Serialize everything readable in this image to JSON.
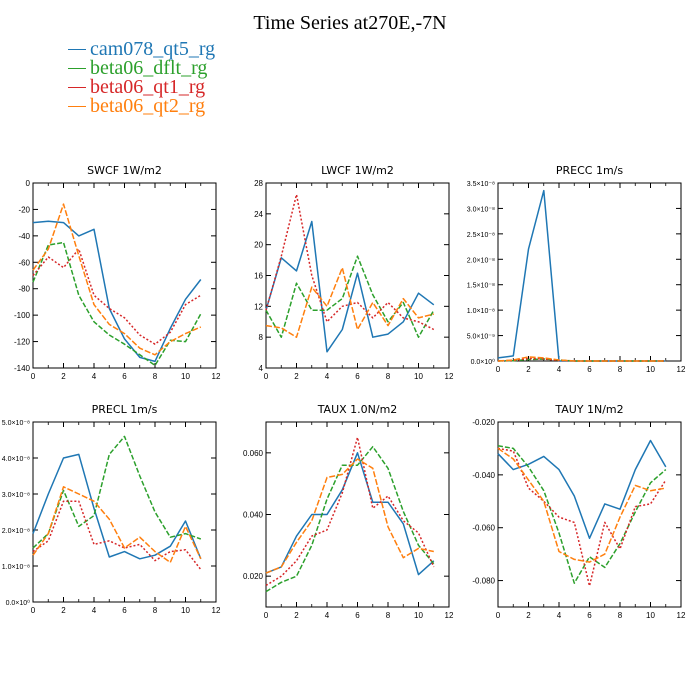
{
  "title": "Time Series at270E,-7N",
  "legend": [
    {
      "name": "cam078_qt5_rg",
      "color": "#1f77b4"
    },
    {
      "name": "beta06_dflt_rg",
      "color": "#2ca02c"
    },
    {
      "name": "beta06_qt1_rg",
      "color": "#d62728"
    },
    {
      "name": "beta06_qt2_rg",
      "color": "#ff7f0e"
    }
  ],
  "chart_data": [
    {
      "type": "line",
      "title": "SWCF 1W/m2",
      "x": [
        0,
        1,
        2,
        3,
        4,
        5,
        6,
        7,
        8,
        9,
        10,
        11
      ],
      "xlim": [
        0,
        12
      ],
      "xticks": [
        0,
        2,
        4,
        6,
        8,
        10,
        12
      ],
      "xtick_labels": [
        "0",
        "2",
        "4",
        "6",
        "8",
        "10",
        "12"
      ],
      "ylim": [
        -140,
        0
      ],
      "yticks": [
        -140,
        -120,
        -100,
        -80,
        -60,
        -40,
        -20,
        0
      ],
      "ytick_labels": [
        "-140",
        "-120",
        "-100",
        "-80",
        "-60",
        "-40",
        "-20",
        "0"
      ],
      "series": [
        {
          "name": "cam078_qt5_rg",
          "values": [
            -30,
            -29,
            -30,
            -40,
            -35,
            -95,
            -118,
            -132,
            -135,
            -110,
            -88,
            -73
          ]
        },
        {
          "name": "beta06_dflt_rg",
          "values": [
            -75,
            -47,
            -45,
            -85,
            -105,
            -115,
            -122,
            -130,
            -138,
            -119,
            -120,
            -99
          ]
        },
        {
          "name": "beta06_qt1_rg",
          "values": [
            -70,
            -56,
            -64,
            -50,
            -85,
            -95,
            -102,
            -115,
            -122,
            -113,
            -92,
            -85
          ]
        },
        {
          "name": "beta06_qt2_rg",
          "values": [
            -66,
            -50,
            -16,
            -55,
            -92,
            -107,
            -114,
            -125,
            -130,
            -120,
            -114,
            -109
          ]
        }
      ]
    },
    {
      "type": "line",
      "title": "LWCF 1W/m2",
      "x": [
        0,
        1,
        2,
        3,
        4,
        5,
        6,
        7,
        8,
        9,
        10,
        11
      ],
      "xlim": [
        0,
        12
      ],
      "xticks": [
        0,
        2,
        4,
        6,
        8,
        10,
        12
      ],
      "xtick_labels": [
        "0",
        "2",
        "4",
        "6",
        "8",
        "10",
        "12"
      ],
      "ylim": [
        4,
        28
      ],
      "yticks": [
        4,
        8,
        12,
        16,
        20,
        24,
        28
      ],
      "ytick_labels": [
        "4",
        "8",
        "12",
        "16",
        "20",
        "24",
        "28"
      ],
      "series": [
        {
          "name": "cam078_qt5_rg",
          "values": [
            11.5,
            18.3,
            16.6,
            23.0,
            6.1,
            9.0,
            16.3,
            8.0,
            8.4,
            10.0,
            13.7,
            12.2
          ]
        },
        {
          "name": "beta06_dflt_rg",
          "values": [
            11.5,
            8.0,
            15.0,
            11.5,
            11.5,
            13.0,
            18.5,
            13.5,
            10.0,
            12.5,
            8.0,
            11.5
          ]
        },
        {
          "name": "beta06_qt1_rg",
          "values": [
            11.5,
            18.5,
            26.5,
            16.0,
            10.0,
            12.0,
            12.5,
            10.5,
            12.5,
            10.5,
            10.0,
            9.0
          ]
        },
        {
          "name": "beta06_qt2_rg",
          "values": [
            9.5,
            9.2,
            8.0,
            14.5,
            12.0,
            17.0,
            9.0,
            12.5,
            9.5,
            13.0,
            10.5,
            11.0
          ]
        }
      ]
    },
    {
      "type": "line",
      "title": "PRECC 1m/s",
      "x": [
        0,
        1,
        2,
        3,
        4,
        5,
        6,
        7,
        8,
        9,
        10,
        11
      ],
      "xlim": [
        0,
        12
      ],
      "xticks": [
        0,
        2,
        4,
        6,
        8,
        10,
        12
      ],
      "xtick_labels": [
        "0",
        "2",
        "4",
        "6",
        "8",
        "10",
        "12"
      ],
      "ylim": [
        0,
        3.5e-08
      ],
      "yticks": [
        0,
        5e-09,
        1e-08,
        1.5e-08,
        2e-08,
        2.5e-08,
        3e-08,
        3.5e-08
      ],
      "ytick_labels": [
        "0.0×10⁰",
        "5.0×10⁻⁹",
        "1.0×10⁻⁸",
        "1.5×10⁻⁸",
        "2.0×10⁻⁸",
        "2.5×10⁻⁸",
        "3.0×10⁻⁸",
        "3.5×10⁻⁸"
      ],
      "series": [
        {
          "name": "cam078_qt5_rg",
          "values": [
            6e-10,
            1e-09,
            2.2e-08,
            3.35e-08,
            0,
            0,
            0,
            0,
            0,
            0,
            0,
            0
          ]
        },
        {
          "name": "beta06_dflt_rg",
          "values": [
            0,
            5e-11,
            3e-10,
            4e-10,
            2e-10,
            0,
            0,
            0,
            0,
            0,
            0,
            0
          ]
        },
        {
          "name": "beta06_qt1_rg",
          "values": [
            0,
            1e-10,
            5e-10,
            4e-10,
            1e-10,
            0,
            0,
            0,
            0,
            0,
            0,
            0
          ]
        },
        {
          "name": "beta06_qt2_rg",
          "values": [
            0,
            2e-10,
            8e-10,
            6e-10,
            2e-10,
            0,
            0,
            0,
            0,
            0,
            0,
            0
          ]
        }
      ]
    },
    {
      "type": "line",
      "title": "PRECL 1m/s",
      "x": [
        0,
        1,
        2,
        3,
        4,
        5,
        6,
        7,
        8,
        9,
        10,
        11
      ],
      "xlim": [
        0,
        12
      ],
      "xticks": [
        0,
        2,
        4,
        6,
        8,
        10,
        12
      ],
      "xtick_labels": [
        "0",
        "2",
        "4",
        "6",
        "8",
        "10",
        "12"
      ],
      "ylim": [
        0,
        5e-08
      ],
      "yticks": [
        0,
        1e-08,
        2e-08,
        3e-08,
        4e-08,
        5e-08
      ],
      "ytick_labels": [
        "0.0×10⁰",
        "1.0×10⁻⁸",
        "2.0×10⁻⁸",
        "3.0×10⁻⁸",
        "4.0×10⁻⁸",
        "5.0×10⁻⁸"
      ],
      "series": [
        {
          "name": "cam078_qt5_rg",
          "values": [
            1.9e-08,
            3e-08,
            4e-08,
            4.1e-08,
            2.6e-08,
            1.25e-08,
            1.4e-08,
            1.2e-08,
            1.3e-08,
            1.55e-08,
            2.25e-08,
            1.2e-08
          ]
        },
        {
          "name": "beta06_dflt_rg",
          "values": [
            1.5e-08,
            1.9e-08,
            3.1e-08,
            2.1e-08,
            2.4e-08,
            4.1e-08,
            4.6e-08,
            3.5e-08,
            2.5e-08,
            1.8e-08,
            1.9e-08,
            1.75e-08
          ]
        },
        {
          "name": "beta06_qt1_rg",
          "values": [
            1.4e-08,
            1.7e-08,
            2.8e-08,
            2.8e-08,
            1.6e-08,
            1.7e-08,
            1.5e-08,
            1.6e-08,
            1.15e-08,
            1.4e-08,
            1.45e-08,
            9e-09
          ]
        },
        {
          "name": "beta06_qt2_rg",
          "values": [
            1.3e-08,
            1.9e-08,
            3.2e-08,
            3e-08,
            2.8e-08,
            2.3e-08,
            1.5e-08,
            1.8e-08,
            1.4e-08,
            1.1e-08,
            2.1e-08,
            1.2e-08
          ]
        }
      ]
    },
    {
      "type": "line",
      "title": "TAUX 1.0N/m2",
      "x": [
        0,
        1,
        2,
        3,
        4,
        5,
        6,
        7,
        8,
        9,
        10,
        11
      ],
      "xlim": [
        0,
        12
      ],
      "xticks": [
        0,
        2,
        4,
        6,
        8,
        10,
        12
      ],
      "xtick_labels": [
        "0",
        "2",
        "4",
        "6",
        "8",
        "10",
        "12"
      ],
      "ylim": [
        0.01,
        0.07
      ],
      "yticks": [
        0.02,
        0.04,
        0.06
      ],
      "ytick_labels": [
        "0.020",
        "0.040",
        "0.060"
      ],
      "series": [
        {
          "name": "cam078_qt5_rg",
          "values": [
            0.021,
            0.023,
            0.033,
            0.04,
            0.04,
            0.048,
            0.06,
            0.044,
            0.044,
            0.037,
            0.0205,
            0.025
          ]
        },
        {
          "name": "beta06_dflt_rg",
          "values": [
            0.015,
            0.018,
            0.02,
            0.03,
            0.045,
            0.056,
            0.056,
            0.062,
            0.055,
            0.041,
            0.03,
            0.024
          ]
        },
        {
          "name": "beta06_qt1_rg",
          "values": [
            0.017,
            0.02,
            0.025,
            0.033,
            0.035,
            0.047,
            0.065,
            0.042,
            0.046,
            0.038,
            0.034,
            0.023
          ]
        },
        {
          "name": "beta06_qt2_rg",
          "values": [
            0.021,
            0.023,
            0.031,
            0.038,
            0.052,
            0.053,
            0.058,
            0.055,
            0.036,
            0.026,
            0.029,
            0.028
          ]
        }
      ]
    },
    {
      "type": "line",
      "title": "TAUY 1N/m2",
      "x": [
        0,
        1,
        2,
        3,
        4,
        5,
        6,
        7,
        8,
        9,
        10,
        11
      ],
      "xlim": [
        0,
        12
      ],
      "xticks": [
        0,
        2,
        4,
        6,
        8,
        10,
        12
      ],
      "xtick_labels": [
        "0",
        "2",
        "4",
        "6",
        "8",
        "10",
        "12"
      ],
      "ylim": [
        -0.09,
        -0.02
      ],
      "yticks": [
        -0.08,
        -0.06,
        -0.04,
        -0.02
      ],
      "ytick_labels": [
        "-0.080",
        "-0.060",
        "-0.040",
        "-0.020"
      ],
      "series": [
        {
          "name": "cam078_qt5_rg",
          "values": [
            -0.032,
            -0.038,
            -0.036,
            -0.033,
            -0.038,
            -0.048,
            -0.064,
            -0.051,
            -0.053,
            -0.038,
            -0.027,
            -0.037
          ]
        },
        {
          "name": "beta06_dflt_rg",
          "values": [
            -0.029,
            -0.03,
            -0.037,
            -0.046,
            -0.062,
            -0.081,
            -0.071,
            -0.075,
            -0.066,
            -0.054,
            -0.043,
            -0.038
          ]
        },
        {
          "name": "beta06_qt1_rg",
          "values": [
            -0.03,
            -0.031,
            -0.045,
            -0.05,
            -0.056,
            -0.058,
            -0.082,
            -0.058,
            -0.068,
            -0.052,
            -0.051,
            -0.042
          ]
        },
        {
          "name": "beta06_qt2_rg",
          "values": [
            -0.03,
            -0.034,
            -0.042,
            -0.05,
            -0.069,
            -0.072,
            -0.073,
            -0.07,
            -0.056,
            -0.044,
            -0.046,
            -0.045
          ]
        }
      ]
    }
  ]
}
